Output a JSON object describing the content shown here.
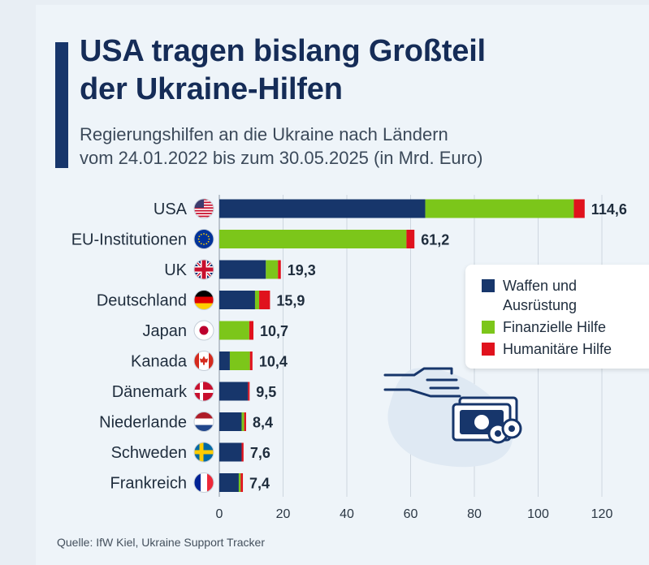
{
  "header": {
    "title_line1": "USA tragen bislang Großteil",
    "title_line2": "der Ukraine-Hilfen",
    "subtitle_line1": "Regierungshilfen an die Ukraine nach Ländern",
    "subtitle_line2": "vom 24.01.2022 bis zum 30.05.2025 (in Mrd. Euro)"
  },
  "source": "Quelle: IfW Kiel, Ukraine Support Tracker",
  "legend": {
    "items": [
      {
        "line1": "Waffen und",
        "line2": "Ausrüstung",
        "color": "#17366b"
      },
      {
        "line1": "Finanzielle Hilfe",
        "line2": "",
        "color": "#7cc61a"
      },
      {
        "line1": "Humanitäre Hilfe",
        "line2": "",
        "color": "#e0121d"
      }
    ]
  },
  "colors": {
    "military": "#17366b",
    "financial": "#7cc61a",
    "humanitarian": "#e0121d",
    "accent": "#17366b"
  },
  "chart_data": {
    "type": "bar",
    "orientation": "horizontal",
    "stacked": true,
    "categories": [
      "USA",
      "EU-Institutionen",
      "UK",
      "Deutschland",
      "Japan",
      "Kanada",
      "Dänemark",
      "Niederlande",
      "Schweden",
      "Frankreich"
    ],
    "flags": [
      "us-flag-icon",
      "eu-flag-icon",
      "uk-flag-icon",
      "germany-flag-icon",
      "japan-flag-icon",
      "canada-flag-icon",
      "denmark-flag-icon",
      "netherlands-flag-icon",
      "sweden-flag-icon",
      "france-flag-icon"
    ],
    "series": [
      {
        "name": "Waffen und Ausrüstung",
        "values": [
          64.6,
          0,
          14.6,
          11.2,
          0,
          3.3,
          9.0,
          7.0,
          7.0,
          6.1
        ]
      },
      {
        "name": "Finanzielle Hilfe",
        "values": [
          46.6,
          58.7,
          3.8,
          1.3,
          9.4,
          6.3,
          0.0,
          0.8,
          0.0,
          0.6
        ]
      },
      {
        "name": "Humanitäre Hilfe",
        "values": [
          3.4,
          2.5,
          0.9,
          3.4,
          1.3,
          0.8,
          0.5,
          0.6,
          0.6,
          0.7
        ]
      }
    ],
    "totals": [
      "114,6",
      "61,2",
      "19,3",
      "15,9",
      "10,7",
      "10,4",
      "9,5",
      "8,4",
      "7,6",
      "7,4"
    ],
    "xlim": [
      0,
      120
    ],
    "xticks": [
      "0",
      "20",
      "40",
      "60",
      "80",
      "100",
      "120"
    ],
    "xtick_values": [
      0,
      20,
      40,
      60,
      80,
      100,
      120
    ],
    "grid": true
  }
}
